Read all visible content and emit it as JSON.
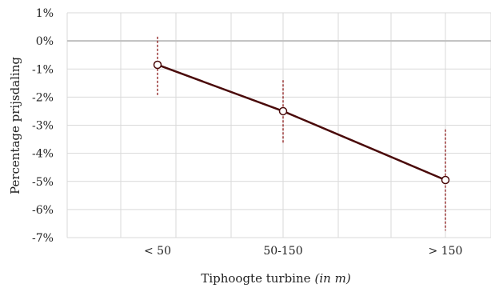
{
  "chart_data": {
    "type": "line",
    "categories": [
      "< 50",
      "50-150",
      "> 150"
    ],
    "series": [
      {
        "values": [
          -0.85,
          -2.5,
          -4.95
        ],
        "error_low": [
          -1.95,
          -3.65,
          -6.75
        ],
        "error_high": [
          0.15,
          -1.4,
          -3.15
        ]
      }
    ],
    "ylim": [
      -7,
      1
    ],
    "yticks": [
      1,
      0,
      -1,
      -2,
      -3,
      -4,
      -5,
      -6,
      -7
    ],
    "ytick_labels": [
      "1%",
      "0%",
      "-1%",
      "-2%",
      "-3%",
      "-4%",
      "-5%",
      "-6%",
      "-7%"
    ],
    "ylabel": "Percentage prijsdaling",
    "xlabel": "Tiphoogte turbine",
    "xlabel_italic": "(in m)",
    "grid": true,
    "colors": {
      "line": "#4a0a0a",
      "marker_fill": "#ffffff",
      "error_bar": "#8b1a1a",
      "grid": "#d9d9d9",
      "zero_line": "#bfbfbf"
    }
  }
}
